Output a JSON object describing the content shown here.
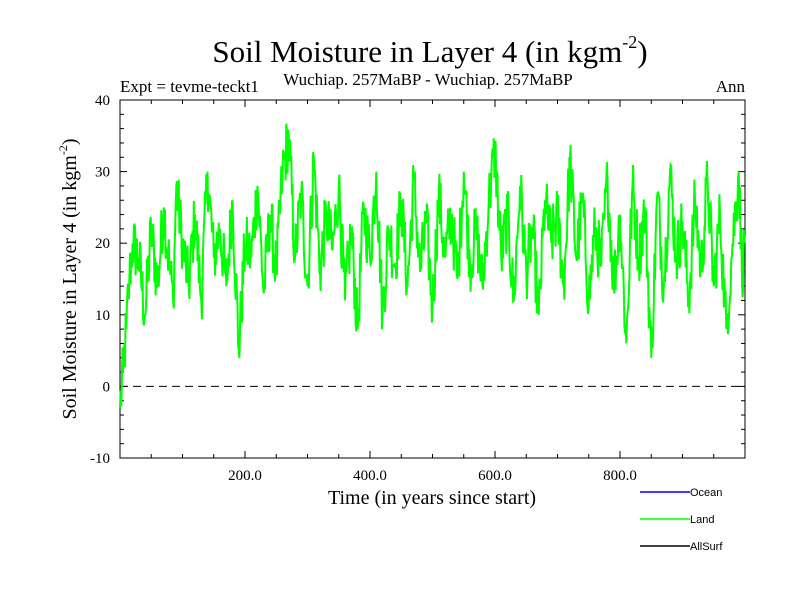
{
  "chart_data": {
    "type": "line",
    "title": "Soil Moisture in Layer 4 (in kgm",
    "title_sup": "-2",
    "title_end": ")",
    "subtitle_left": "Expt = tevme-teckt1",
    "subtitle_center": "Wuchiap. 257MaBP - Wuchiap. 257MaBP",
    "subtitle_right": "Ann",
    "xlabel": "Time (in years since start)",
    "ylabel": "Soil Moisture in Layer 4 (in kgm",
    "ylabel_sup": "-2",
    "ylabel_end": ")",
    "xlim": [
      0,
      1000
    ],
    "ylim": [
      -10,
      40
    ],
    "x_ticks": [
      200,
      400,
      600,
      800
    ],
    "x_tick_labels": [
      "200.0",
      "400.0",
      "600.0",
      "800.0"
    ],
    "y_ticks": [
      -10,
      0,
      10,
      20,
      30,
      40
    ],
    "y_tick_labels": [
      "-10",
      "0",
      "10",
      "20",
      "30",
      "40"
    ],
    "zero_line": 0,
    "series": [
      {
        "name": "Land",
        "color": "#00ff00",
        "description_of_values": "noisy annual series, mean about 19, range about 3 to 35",
        "x": [
          0,
          5,
          10,
          15,
          20,
          30,
          40,
          50,
          60,
          70,
          80,
          85,
          90,
          100,
          110,
          120,
          130,
          140,
          150,
          160,
          170,
          180,
          190,
          200,
          210,
          220,
          230,
          240,
          250,
          260,
          270,
          280,
          290,
          300,
          310,
          320,
          330,
          340,
          350,
          360,
          370,
          380,
          390,
          400,
          410,
          420,
          430,
          440,
          450,
          460,
          470,
          480,
          490,
          500,
          510,
          520,
          530,
          540,
          550,
          560,
          570,
          580,
          590,
          600,
          610,
          620,
          630,
          640,
          650,
          660,
          670,
          680,
          690,
          700,
          710,
          720,
          730,
          740,
          750,
          760,
          770,
          780,
          790,
          800,
          810,
          820,
          830,
          840,
          850,
          860,
          870,
          880,
          890,
          900,
          910,
          920,
          930,
          940,
          950,
          960,
          970,
          980,
          990,
          995,
          1000
        ],
        "y": [
          -3,
          2,
          8,
          15,
          20,
          18,
          10,
          22,
          14,
          25,
          16,
          12,
          28,
          20,
          14,
          24,
          12,
          30,
          18,
          22,
          14,
          26,
          5,
          20,
          18,
          28,
          13,
          24,
          16,
          30,
          35,
          18,
          27,
          14,
          32,
          16,
          24,
          19,
          28,
          12,
          22,
          8,
          25,
          18,
          30,
          10,
          22,
          17,
          26,
          14,
          29,
          16,
          23,
          11,
          27,
          18,
          24,
          15,
          30,
          17,
          22,
          14,
          26,
          33,
          18,
          24,
          12,
          28,
          16,
          22,
          10,
          26,
          20,
          24,
          14,
          32,
          18,
          26,
          12,
          22,
          17,
          29,
          14,
          24,
          6,
          28,
          18,
          25,
          4,
          27,
          14,
          30,
          18,
          23,
          12,
          26,
          16,
          29,
          14,
          24,
          8,
          20,
          30,
          16,
          20
        ]
      },
      {
        "name": "Ocean",
        "color": "#0000ff",
        "description_of_values": "legend only"
      },
      {
        "name": "AllSurf",
        "color": "#000000",
        "description_of_values": "legend only"
      }
    ],
    "legend": {
      "position": "bottom-right",
      "entries": [
        {
          "label": "Ocean",
          "color": "#0000ff"
        },
        {
          "label": "Land",
          "color": "#00ff00"
        },
        {
          "label": "AllSurf",
          "color": "#000000"
        }
      ]
    }
  }
}
